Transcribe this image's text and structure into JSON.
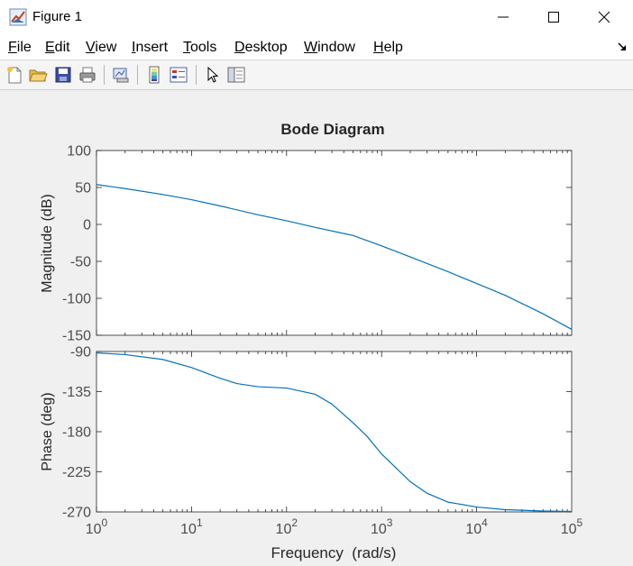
{
  "window": {
    "title": "Figure 1",
    "icons": [
      "matlab-icon",
      "minimize-icon",
      "maximize-icon",
      "close-icon"
    ]
  },
  "menu": {
    "items": [
      {
        "label": "File",
        "ul": "F",
        "rest": "ile"
      },
      {
        "label": "Edit",
        "ul": "E",
        "rest": "dit"
      },
      {
        "label": "View",
        "ul": "V",
        "rest": "iew"
      },
      {
        "label": "Insert",
        "ul": "I",
        "rest": "nsert"
      },
      {
        "label": "Tools",
        "ul": "T",
        "rest": "ools"
      },
      {
        "label": "Desktop",
        "ul": "D",
        "rest": "esktop"
      },
      {
        "label": "Window",
        "ul": "W",
        "rest": "indow"
      },
      {
        "label": "Help",
        "ul": "H",
        "rest": "elp"
      }
    ]
  },
  "toolbar": {
    "buttons": [
      "new-figure-icon",
      "open-file-icon",
      "save-icon",
      "print-icon",
      "link-plot-icon",
      "insert-colorbar-icon",
      "insert-legend-icon",
      "edit-plot-icon",
      "property-inspector-icon"
    ]
  },
  "chart_data": {
    "type": "line",
    "title": "Bode Diagram",
    "xlabel": "Frequency  (rad/s)",
    "xscale": "log",
    "xlim": [
      1,
      100000
    ],
    "x_tick_labels": [
      "10^0",
      "10^1",
      "10^2",
      "10^3",
      "10^4",
      "10^5"
    ],
    "color": "#0072bd",
    "panels": [
      {
        "name": "magnitude",
        "ylabel": "Magnitude (dB)",
        "ylim": [
          -150,
          100
        ],
        "yticks": [
          100,
          50,
          0,
          -50,
          -100,
          -150
        ],
        "x": [
          1,
          2,
          5,
          10,
          20,
          50,
          100,
          200,
          500,
          1000,
          2000,
          5000,
          10000,
          20000,
          50000,
          100000
        ],
        "y": [
          54,
          48.5,
          40.5,
          33.5,
          25,
          13,
          5,
          -4,
          -15,
          -29,
          -44,
          -64,
          -80,
          -96,
          -121,
          -142
        ]
      },
      {
        "name": "phase",
        "ylabel": "Phase (deg)",
        "ylim": [
          -270,
          -90
        ],
        "yticks": [
          -90,
          -135,
          -180,
          -225,
          -270
        ],
        "x": [
          1,
          2,
          5,
          10,
          20,
          30,
          50,
          100,
          200,
          300,
          500,
          700,
          1000,
          2000,
          3000,
          5000,
          10000,
          20000,
          50000,
          100000
        ],
        "y": [
          -91.5,
          -93.5,
          -99,
          -108,
          -120,
          -126,
          -129.5,
          -131,
          -138,
          -149,
          -170,
          -185,
          -205,
          -236,
          -249,
          -259,
          -264.5,
          -267.5,
          -269,
          -269.5
        ]
      }
    ]
  }
}
